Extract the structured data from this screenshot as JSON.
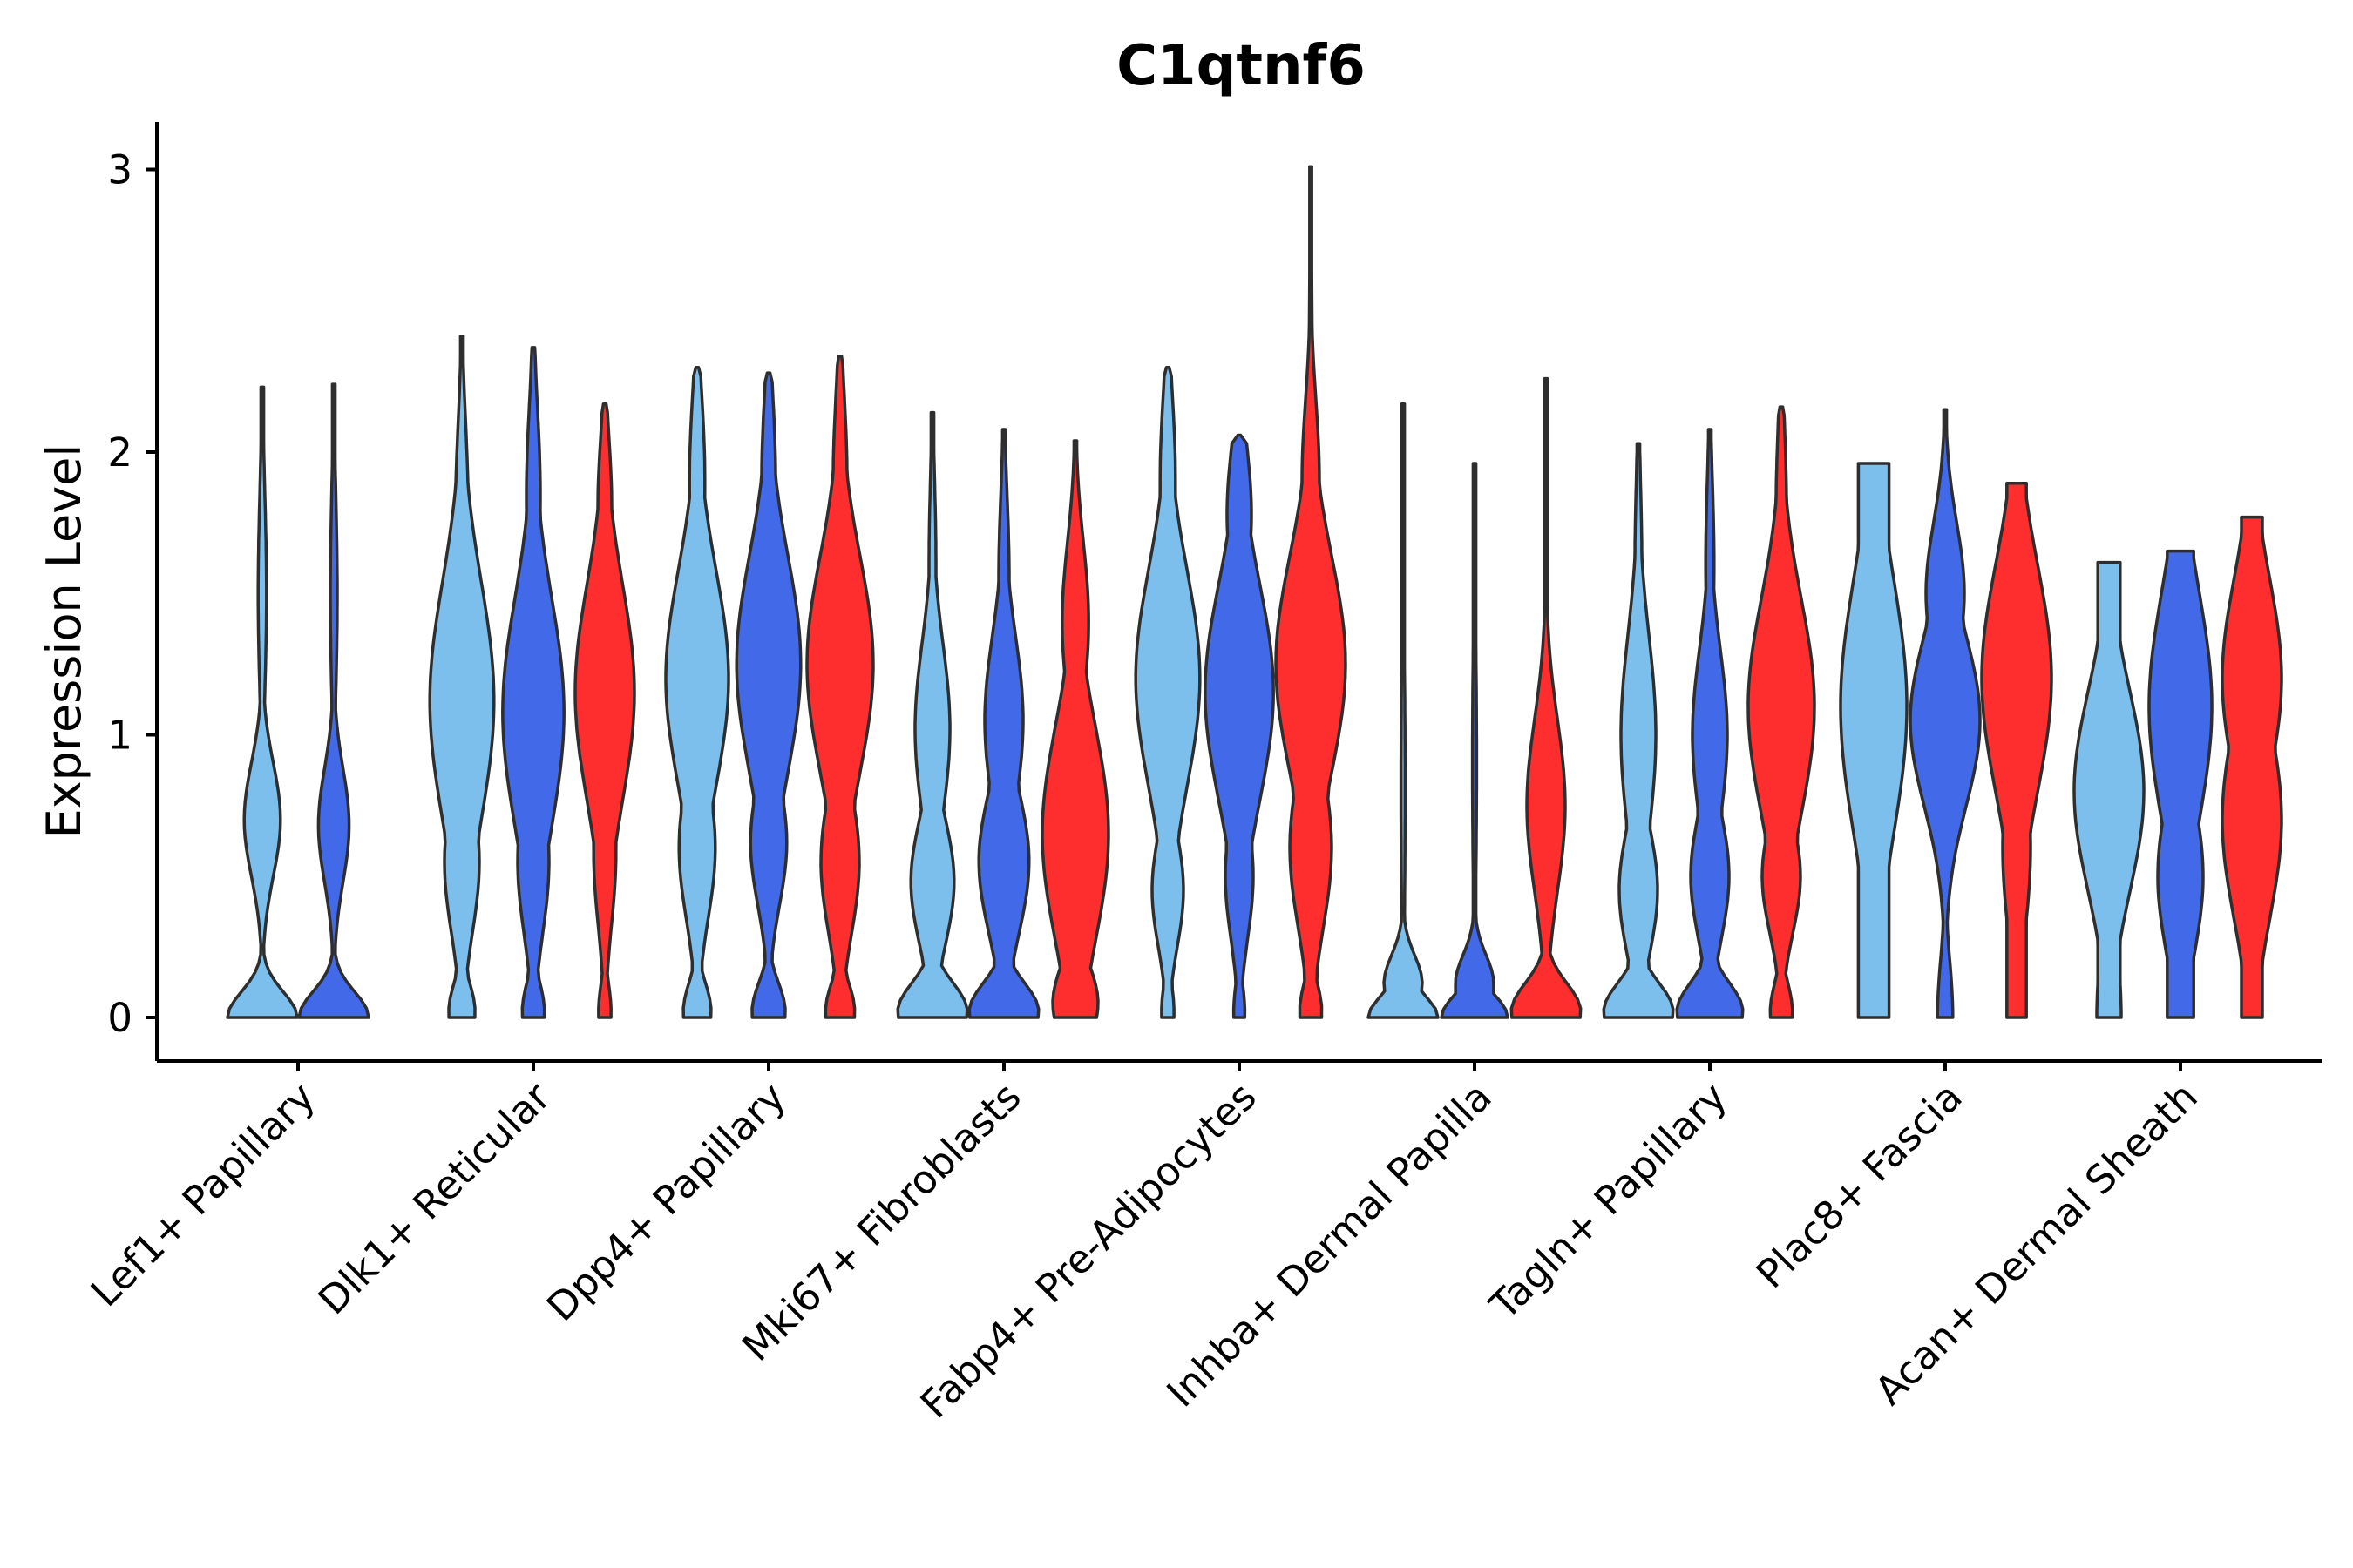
{
  "chart_data": {
    "type": "violin",
    "title": "C1qtnf6",
    "xlabel": "",
    "ylabel": "Expression Level",
    "ylim": [
      -0.15,
      3.15
    ],
    "yticks": [
      0,
      1,
      2,
      3
    ],
    "grid": false,
    "legend": "none",
    "colors": [
      "#7DBFEC",
      "#4169E8",
      "#FF2E2E"
    ],
    "categories": [
      "Lef1+ Papillary",
      "Dlk1+ Reticular",
      "Dpp4+ Papillary",
      "Mki67+ Fibroblasts",
      "Fabp4+ Pre-Adipocytes",
      "Inhba+ Dermal Papilla",
      "Tagln+ Papillary",
      "Plac8+ Fascia",
      "Acan+ Dermal Sheath"
    ],
    "violins": [
      {
        "category": 0,
        "series": 0,
        "max": 2.23,
        "top_width": 0.04,
        "bulges": [
          [
            0,
            1.0,
            0.09
          ],
          [
            0.7,
            0.52,
            0.2
          ],
          [
            1.5,
            0.12,
            0.35
          ]
        ]
      },
      {
        "category": 0,
        "series": 1,
        "max": 2.24,
        "top_width": 0.04,
        "bulges": [
          [
            0,
            1.0,
            0.09
          ],
          [
            0.68,
            0.44,
            0.2
          ],
          [
            1.5,
            0.1,
            0.35
          ]
        ]
      },
      {
        "category": 1,
        "series": 0,
        "max": 2.41,
        "top_width": 0.04,
        "bulges": [
          [
            0.02,
            0.38,
            0.1
          ],
          [
            0.55,
            0.5,
            0.25
          ],
          [
            1.12,
            0.92,
            0.42
          ],
          [
            1.8,
            0.18,
            0.3
          ]
        ]
      },
      {
        "category": 1,
        "series": 1,
        "max": 2.37,
        "top_width": 0.04,
        "bulges": [
          [
            0.02,
            0.32,
            0.1
          ],
          [
            0.55,
            0.45,
            0.25
          ],
          [
            1.08,
            0.88,
            0.4
          ],
          [
            1.85,
            0.2,
            0.3
          ]
        ]
      },
      {
        "category": 1,
        "series": 2,
        "max": 2.17,
        "top_width": 0.04,
        "bulges": [
          [
            0.02,
            0.18,
            0.1
          ],
          [
            0.58,
            0.32,
            0.25
          ],
          [
            1.15,
            0.85,
            0.38
          ],
          [
            1.8,
            0.2,
            0.25
          ]
        ]
      },
      {
        "category": 2,
        "series": 0,
        "max": 2.3,
        "top_width": 0.04,
        "bulges": [
          [
            0.02,
            0.4,
            0.1
          ],
          [
            0.6,
            0.52,
            0.25
          ],
          [
            1.2,
            0.9,
            0.38
          ],
          [
            1.9,
            0.22,
            0.3
          ]
        ]
      },
      {
        "category": 2,
        "series": 1,
        "max": 2.28,
        "top_width": 0.04,
        "bulges": [
          [
            0.02,
            0.48,
            0.1
          ],
          [
            0.62,
            0.52,
            0.22
          ],
          [
            1.25,
            0.92,
            0.38
          ],
          [
            1.9,
            0.2,
            0.3
          ]
        ]
      },
      {
        "category": 2,
        "series": 2,
        "max": 2.34,
        "top_width": 0.04,
        "bulges": [
          [
            0.02,
            0.42,
            0.1
          ],
          [
            0.55,
            0.55,
            0.25
          ],
          [
            1.25,
            0.95,
            0.38
          ],
          [
            1.9,
            0.2,
            0.3
          ]
        ]
      },
      {
        "category": 3,
        "series": 0,
        "max": 2.14,
        "top_width": 0.04,
        "bulges": [
          [
            0.02,
            1.0,
            0.1
          ],
          [
            0.48,
            0.62,
            0.22
          ],
          [
            1.02,
            0.5,
            0.3
          ],
          [
            1.6,
            0.1,
            0.3
          ]
        ]
      },
      {
        "category": 3,
        "series": 1,
        "max": 2.08,
        "top_width": 0.04,
        "bulges": [
          [
            0.02,
            1.0,
            0.1
          ],
          [
            0.55,
            0.72,
            0.25
          ],
          [
            1.05,
            0.55,
            0.3
          ],
          [
            1.55,
            0.15,
            0.3
          ]
        ]
      },
      {
        "category": 3,
        "series": 2,
        "max": 2.04,
        "top_width": 0.04,
        "bulges": [
          [
            0.05,
            0.65,
            0.14
          ],
          [
            0.65,
            0.95,
            0.38
          ],
          [
            1.4,
            0.38,
            0.28
          ]
        ]
      },
      {
        "category": 4,
        "series": 0,
        "max": 2.3,
        "top_width": 0.04,
        "bulges": [
          [
            0.02,
            0.18,
            0.1
          ],
          [
            0.45,
            0.45,
            0.2
          ],
          [
            1.2,
            0.92,
            0.38
          ],
          [
            1.9,
            0.22,
            0.3
          ]
        ]
      },
      {
        "category": 4,
        "series": 1,
        "max": 2.06,
        "top_width": 0.04,
        "bulges": [
          [
            0.02,
            0.16,
            0.1
          ],
          [
            0.5,
            0.4,
            0.22
          ],
          [
            1.15,
            0.98,
            0.38
          ],
          [
            1.78,
            0.35,
            0.25
          ]
        ]
      },
      {
        "category": 4,
        "series": 2,
        "max": 3.01,
        "top_width": 0.03,
        "bulges": [
          [
            0.02,
            0.32,
            0.1
          ],
          [
            0.6,
            0.6,
            0.28
          ],
          [
            1.25,
            1.0,
            0.38
          ],
          [
            1.9,
            0.25,
            0.28
          ],
          [
            2.4,
            0.04,
            0.3
          ]
        ]
      },
      {
        "category": 5,
        "series": 0,
        "max": 2.17,
        "top_width": 0.04,
        "bulges": [
          [
            0.0,
            1.0,
            0.08
          ],
          [
            0.12,
            0.55,
            0.1
          ],
          [
            0.8,
            0.06,
            0.5
          ]
        ]
      },
      {
        "category": 5,
        "series": 1,
        "max": 1.96,
        "top_width": 0.04,
        "bulges": [
          [
            0.0,
            0.95,
            0.08
          ],
          [
            0.12,
            0.55,
            0.1
          ],
          [
            0.9,
            0.06,
            0.45
          ]
        ]
      },
      {
        "category": 5,
        "series": 2,
        "max": 2.26,
        "top_width": 0.04,
        "bulges": [
          [
            0.02,
            1.0,
            0.1
          ],
          [
            0.75,
            0.55,
            0.3
          ],
          [
            1.5,
            0.04,
            0.3
          ]
        ]
      },
      {
        "category": 6,
        "series": 0,
        "max": 2.03,
        "top_width": 0.04,
        "bulges": [
          [
            0.02,
            1.0,
            0.1
          ],
          [
            0.45,
            0.55,
            0.22
          ],
          [
            1.0,
            0.5,
            0.35
          ],
          [
            1.6,
            0.1,
            0.3
          ]
        ]
      },
      {
        "category": 6,
        "series": 1,
        "max": 2.08,
        "top_width": 0.04,
        "bulges": [
          [
            0.02,
            0.95,
            0.1
          ],
          [
            0.5,
            0.55,
            0.22
          ],
          [
            1.0,
            0.5,
            0.3
          ],
          [
            1.6,
            0.12,
            0.3
          ]
        ]
      },
      {
        "category": 6,
        "series": 2,
        "max": 2.16,
        "top_width": 0.04,
        "bulges": [
          [
            0.02,
            0.32,
            0.1
          ],
          [
            0.5,
            0.55,
            0.2
          ],
          [
            1.1,
            0.95,
            0.38
          ],
          [
            1.8,
            0.15,
            0.3
          ]
        ]
      },
      {
        "category": 7,
        "series": 0,
        "max": 1.96,
        "top_width": 0.44,
        "bulges": [
          [
            0.0,
            0.28,
            0.2
          ],
          [
            1.1,
            0.95,
            0.45
          ]
        ]
      },
      {
        "category": 7,
        "series": 1,
        "max": 2.15,
        "top_width": 0.04,
        "bulges": [
          [
            0.0,
            0.22,
            0.2
          ],
          [
            1.05,
            1.0,
            0.3
          ],
          [
            1.5,
            0.55,
            0.25
          ]
        ]
      },
      {
        "category": 7,
        "series": 2,
        "max": 1.89,
        "top_width": 0.28,
        "bulges": [
          [
            0.0,
            0.12,
            0.2
          ],
          [
            0.6,
            0.4,
            0.3
          ],
          [
            1.2,
            1.0,
            0.4
          ]
        ]
      },
      {
        "category": 8,
        "series": 0,
        "max": 1.61,
        "top_width": 0.32,
        "bulges": [
          [
            0.0,
            0.35,
            0.28
          ],
          [
            0.8,
            1.0,
            0.35
          ]
        ]
      },
      {
        "category": 8,
        "series": 1,
        "max": 1.65,
        "top_width": 0.38,
        "bulges": [
          [
            0.0,
            0.05,
            0.16
          ],
          [
            0.5,
            0.65,
            0.28
          ],
          [
            1.1,
            0.9,
            0.4
          ]
        ]
      },
      {
        "category": 8,
        "series": 2,
        "max": 1.77,
        "top_width": 0.3,
        "bulges": [
          [
            0.0,
            0.28,
            0.2
          ],
          [
            0.7,
            0.85,
            0.35
          ],
          [
            1.2,
            0.85,
            0.35
          ]
        ]
      }
    ]
  }
}
